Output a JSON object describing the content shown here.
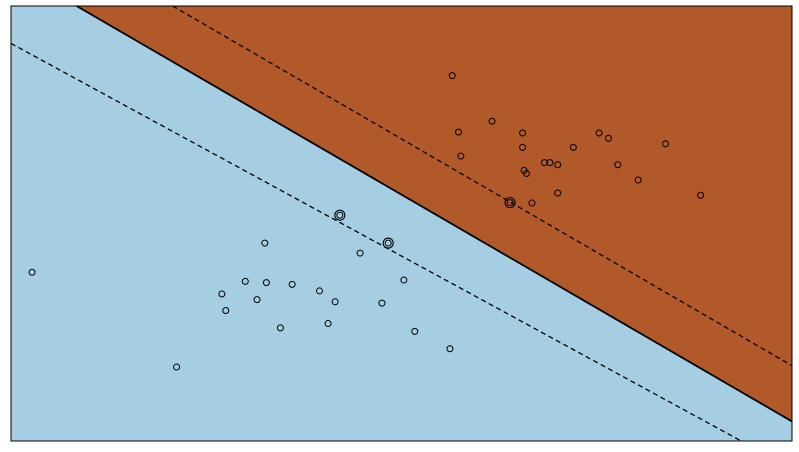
{
  "chart_data": {
    "type": "scatter",
    "title": "",
    "xlabel": "",
    "ylabel": "",
    "xlim": [
      0,
      10
    ],
    "ylim": [
      0,
      10
    ],
    "grid": false,
    "ticks": false,
    "legend": "none",
    "colors": {
      "class_a_region": "#a6cee3",
      "class_b_region": "#b15928",
      "boundary": "#000000",
      "margin": "#000000",
      "points": "#000000",
      "frame": "#000000"
    },
    "decision_boundary": {
      "x1": [
        0.84,
        10.0
      ],
      "x2": [
        10.0,
        0.45
      ]
    },
    "margin_upper": {
      "x1": [
        2.07,
        10.0
      ],
      "x2": [
        10.0,
        1.73
      ]
    },
    "margin_lower": {
      "x1": [
        0.0,
        9.14
      ],
      "x2": [
        9.35,
        0.0
      ]
    },
    "series": [
      {
        "values": [
          {
            "x": 0.27,
            "y": 3.88
          },
          {
            "x": 2.12,
            "y": 1.7
          },
          {
            "x": 2.7,
            "y": 3.38
          },
          {
            "x": 2.75,
            "y": 3.0
          },
          {
            "x": 3.0,
            "y": 3.67
          },
          {
            "x": 3.15,
            "y": 3.25
          },
          {
            "x": 3.25,
            "y": 4.55
          },
          {
            "x": 3.27,
            "y": 3.64
          },
          {
            "x": 3.45,
            "y": 2.6
          },
          {
            "x": 3.6,
            "y": 3.6
          },
          {
            "x": 3.95,
            "y": 3.45
          },
          {
            "x": 4.06,
            "y": 2.7
          },
          {
            "x": 4.15,
            "y": 3.2
          },
          {
            "x": 4.47,
            "y": 4.32
          },
          {
            "x": 4.75,
            "y": 3.17
          },
          {
            "x": 5.03,
            "y": 3.7
          },
          {
            "x": 5.17,
            "y": 2.52
          },
          {
            "x": 5.62,
            "y": 2.12
          }
        ]
      },
      {
        "values": [
          {
            "x": 5.65,
            "y": 8.4
          },
          {
            "x": 5.73,
            "y": 7.1
          },
          {
            "x": 5.76,
            "y": 6.55
          },
          {
            "x": 6.16,
            "y": 7.35
          },
          {
            "x": 6.57,
            "y": 6.22
          },
          {
            "x": 6.55,
            "y": 7.08
          },
          {
            "x": 6.55,
            "y": 6.75
          },
          {
            "x": 6.6,
            "y": 6.15
          },
          {
            "x": 6.67,
            "y": 5.47
          },
          {
            "x": 6.83,
            "y": 6.4
          },
          {
            "x": 6.9,
            "y": 6.4
          },
          {
            "x": 7.0,
            "y": 6.35
          },
          {
            "x": 7.0,
            "y": 5.7
          },
          {
            "x": 7.2,
            "y": 6.75
          },
          {
            "x": 7.53,
            "y": 7.08
          },
          {
            "x": 7.65,
            "y": 6.96
          },
          {
            "x": 7.77,
            "y": 6.35
          },
          {
            "x": 8.03,
            "y": 6.0
          },
          {
            "x": 8.38,
            "y": 6.83
          },
          {
            "x": 8.83,
            "y": 5.65
          }
        ]
      }
    ],
    "support_vectors": [
      {
        "x": 4.21,
        "y": 5.19
      },
      {
        "x": 4.83,
        "y": 4.55
      },
      {
        "x": 6.39,
        "y": 5.48
      }
    ]
  }
}
